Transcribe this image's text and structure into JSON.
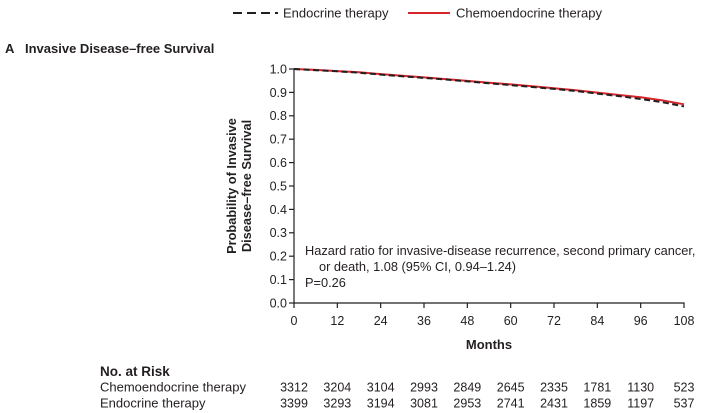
{
  "chart_data": {
    "type": "line",
    "panel_label": "A",
    "title": "Invasive Disease–free Survival",
    "xlabel": "Months",
    "ylabel": [
      "Probability of Invasive",
      "Disease–free Survival"
    ],
    "xlim": [
      0,
      108
    ],
    "ylim": [
      0,
      1.0
    ],
    "xticks": [
      0,
      12,
      24,
      36,
      48,
      60,
      72,
      84,
      96,
      108
    ],
    "yticks": [
      "0.0",
      "0.1",
      "0.2",
      "0.3",
      "0.4",
      "0.5",
      "0.6",
      "0.7",
      "0.8",
      "0.9",
      "1.0"
    ],
    "grid": false,
    "legend_position": "top-center",
    "x": [
      0,
      6,
      12,
      18,
      24,
      30,
      36,
      42,
      48,
      54,
      60,
      66,
      72,
      78,
      84,
      90,
      96,
      102,
      108
    ],
    "series": [
      {
        "name": "Endocrine therapy",
        "color": "#231f20",
        "dashed": true,
        "y": [
          1.0,
          0.995,
          0.99,
          0.984,
          0.976,
          0.969,
          0.962,
          0.955,
          0.947,
          0.939,
          0.931,
          0.923,
          0.915,
          0.906,
          0.895,
          0.884,
          0.872,
          0.858,
          0.84
        ]
      },
      {
        "name": "Chemoendocrine therapy",
        "color": "#d7262b",
        "dashed": false,
        "y": [
          1.0,
          0.996,
          0.991,
          0.986,
          0.978,
          0.971,
          0.964,
          0.957,
          0.949,
          0.941,
          0.934,
          0.926,
          0.918,
          0.909,
          0.899,
          0.889,
          0.879,
          0.866,
          0.849
        ]
      }
    ],
    "annotations": [
      "Hazard ratio for invasive-disease recurrence, second primary cancer,",
      "or death, 1.08 (95% CI, 0.94–1.24)",
      "P=0.26"
    ],
    "risk_table": {
      "title": "No. at Risk",
      "rows": [
        {
          "label": "Chemoendocrine therapy",
          "values": [
            3312,
            3204,
            3104,
            2993,
            2849,
            2645,
            2335,
            1781,
            1130,
            523
          ]
        },
        {
          "label": "Endocrine therapy",
          "values": [
            3399,
            3293,
            3194,
            3081,
            2953,
            2741,
            2431,
            1859,
            1197,
            537
          ]
        }
      ]
    }
  }
}
